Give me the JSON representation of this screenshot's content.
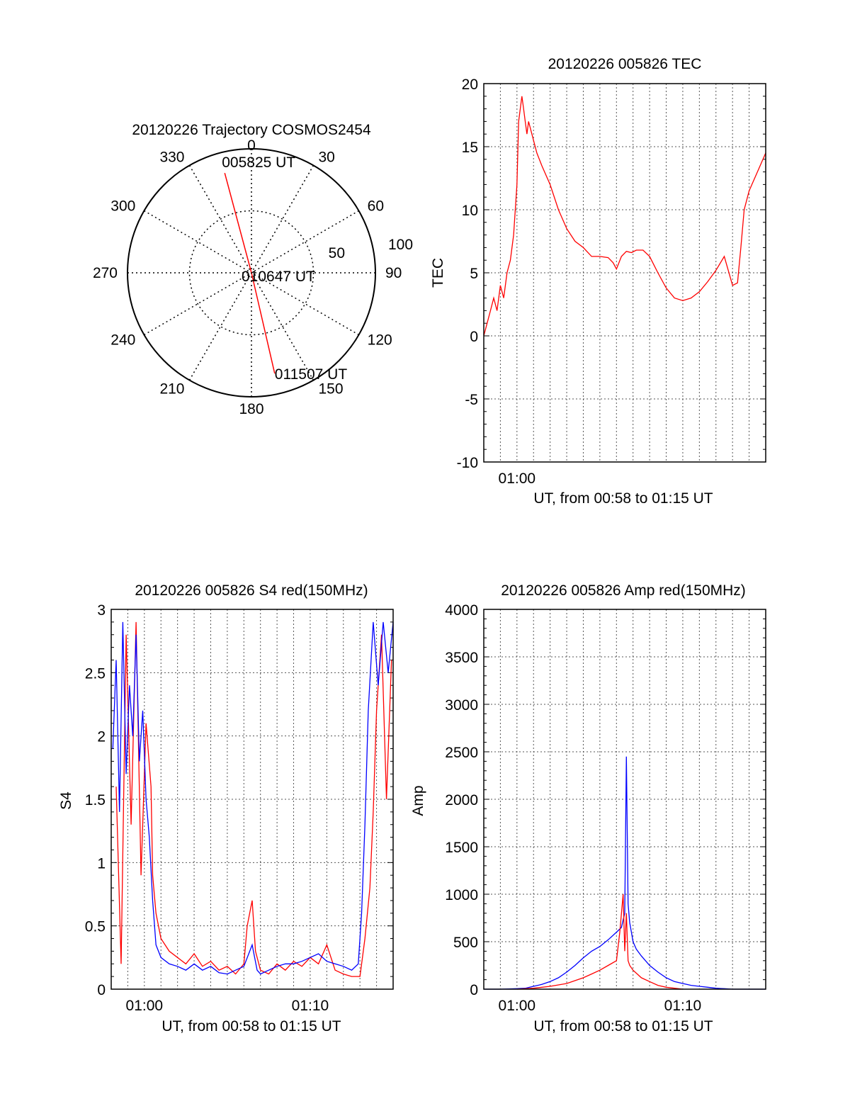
{
  "colors": {
    "red": "#ff0000",
    "blue": "#0000ff",
    "axis": "#000000",
    "grid": "#555555"
  },
  "chart_data": [
    {
      "id": "polar",
      "type": "scatter",
      "subtype": "polar-trajectory",
      "title": "20120226 Trajectory COSMOS2454",
      "angle_labels": [
        "0",
        "30",
        "60",
        "90",
        "120",
        "150",
        "180",
        "210",
        "240",
        "270",
        "300",
        "330"
      ],
      "radius_labels": [
        "50",
        "100"
      ],
      "radius_max": 100,
      "trajectory": [
        {
          "label": "005825 UT",
          "azimuth": 345,
          "elevation": 15
        },
        {
          "label": "010647 UT",
          "azimuth": 0,
          "elevation": 90
        },
        {
          "label": "011507 UT",
          "azimuth": 167,
          "elevation": 15
        }
      ],
      "grid": true
    },
    {
      "id": "tec",
      "type": "line",
      "title": "20120226 005826 TEC",
      "xlabel": "UT, from 00:58 to 01:15 UT",
      "ylabel": "TEC",
      "xlim": [
        58.0,
        75.0
      ],
      "ylim": [
        -10,
        20
      ],
      "x_ticks": [
        {
          "value": 60,
          "label": "01:00"
        }
      ],
      "y_ticks": [
        -10,
        -5,
        0,
        5,
        10,
        15,
        20
      ],
      "grid": true,
      "series": [
        {
          "color": "red",
          "x": [
            58.0,
            58.2,
            58.4,
            58.6,
            58.8,
            59.0,
            59.2,
            59.4,
            59.6,
            59.8,
            60.0,
            60.1,
            60.2,
            60.3,
            60.4,
            60.5,
            60.6,
            60.7,
            60.9,
            61.2,
            61.5,
            62.0,
            62.5,
            63.0,
            63.5,
            64.0,
            64.5,
            65.0,
            65.5,
            65.8,
            66.0,
            66.3,
            66.6,
            66.9,
            67.2,
            67.6,
            68.0,
            68.5,
            69.0,
            69.5,
            70.0,
            70.5,
            71.0,
            71.5,
            72.0,
            72.5,
            73.0,
            73.3,
            73.5,
            73.7,
            74.0,
            74.5,
            75.0
          ],
          "y": [
            0,
            1,
            2,
            3,
            2,
            4,
            3,
            5,
            6,
            8,
            12,
            17,
            18,
            19,
            18,
            17,
            16,
            17,
            16,
            14.5,
            13.5,
            12,
            10,
            8.5,
            7.5,
            7,
            6.3,
            6.3,
            6.2,
            5.8,
            5.3,
            6.3,
            6.7,
            6.6,
            6.8,
            6.8,
            6.3,
            5.0,
            3.8,
            3.0,
            2.8,
            3.0,
            3.5,
            4.3,
            5.2,
            6.3,
            4.0,
            4.2,
            7.0,
            10,
            11.5,
            13,
            14.5
          ]
        }
      ]
    },
    {
      "id": "s4",
      "type": "line",
      "title": "20120226 005826 S4 red(150MHz)",
      "xlabel": "UT, from 00:58 to 01:15 UT",
      "ylabel": "S4",
      "xlim": [
        58.0,
        75.0
      ],
      "ylim": [
        0,
        3
      ],
      "x_ticks": [
        {
          "value": 60,
          "label": "01:00"
        },
        {
          "value": 70,
          "label": "01:10"
        }
      ],
      "y_ticks": [
        {
          "value": 0,
          "label": "0"
        },
        {
          "value": 0.5,
          "label": "0.5"
        },
        {
          "value": 1,
          "label": "1"
        },
        {
          "value": 1.5,
          "label": "1.5"
        },
        {
          "value": 2,
          "label": "2"
        },
        {
          "value": 2.5,
          "label": "2.5"
        },
        {
          "value": 3,
          "label": "3"
        }
      ],
      "grid": true,
      "series": [
        {
          "color": "red",
          "x": [
            58.3,
            58.6,
            58.9,
            59.2,
            59.5,
            59.8,
            60.1,
            60.4,
            60.5,
            60.7,
            61.0,
            61.5,
            62.0,
            62.5,
            63.0,
            63.5,
            64.0,
            64.5,
            65.0,
            65.5,
            66.0,
            66.2,
            66.5,
            66.7,
            67.0,
            67.5,
            68.0,
            68.5,
            69.0,
            69.5,
            70.0,
            70.5,
            71.0,
            71.5,
            72.0,
            72.5,
            73.0,
            73.3,
            73.6,
            73.8,
            74.0,
            74.3,
            74.6,
            74.9
          ],
          "y": [
            1.6,
            0.2,
            2.8,
            1.3,
            2.9,
            0.9,
            2.1,
            1.6,
            0.9,
            0.6,
            0.4,
            0.3,
            0.25,
            0.2,
            0.28,
            0.18,
            0.22,
            0.15,
            0.18,
            0.12,
            0.2,
            0.5,
            0.7,
            0.3,
            0.15,
            0.12,
            0.2,
            0.15,
            0.22,
            0.18,
            0.25,
            0.2,
            0.35,
            0.15,
            0.12,
            0.1,
            0.1,
            0.4,
            0.8,
            1.4,
            2.2,
            2.8,
            1.5,
            2.6
          ]
        },
        {
          "color": "blue",
          "x": [
            58.1,
            58.3,
            58.5,
            58.7,
            58.9,
            59.1,
            59.3,
            59.5,
            59.7,
            59.9,
            60.1,
            60.3,
            60.5,
            60.7,
            61.0,
            61.5,
            62.0,
            62.5,
            63.0,
            63.5,
            64.0,
            64.5,
            65.0,
            65.5,
            66.0,
            66.5,
            66.8,
            67.0,
            67.5,
            68.0,
            68.5,
            69.0,
            69.5,
            70.0,
            70.5,
            71.0,
            71.5,
            72.0,
            72.5,
            72.9,
            73.1,
            73.3,
            73.5,
            73.8,
            74.1,
            74.4,
            74.7,
            75.0
          ],
          "y": [
            1.9,
            2.6,
            1.4,
            2.9,
            1.7,
            2.4,
            2.0,
            2.8,
            1.8,
            2.2,
            1.5,
            1.2,
            0.7,
            0.35,
            0.25,
            0.2,
            0.18,
            0.15,
            0.2,
            0.15,
            0.18,
            0.13,
            0.12,
            0.15,
            0.18,
            0.35,
            0.15,
            0.12,
            0.15,
            0.18,
            0.2,
            0.2,
            0.22,
            0.25,
            0.28,
            0.22,
            0.2,
            0.18,
            0.15,
            0.2,
            0.6,
            1.3,
            2.2,
            2.9,
            2.4,
            2.9,
            2.5,
            2.9
          ]
        }
      ]
    },
    {
      "id": "amp",
      "type": "line",
      "title": "20120226 005826 Amp red(150MHz)",
      "xlabel": "UT, from 00:58 to 01:15 UT",
      "ylabel": "Amp",
      "xlim": [
        58.0,
        75.0
      ],
      "ylim": [
        0,
        4000
      ],
      "x_ticks": [
        {
          "value": 60,
          "label": "01:00"
        },
        {
          "value": 70,
          "label": "01:10"
        }
      ],
      "y_ticks": [
        0,
        500,
        1000,
        1500,
        2000,
        2500,
        3000,
        3500,
        4000
      ],
      "grid": true,
      "series": [
        {
          "color": "blue",
          "x": [
            58.0,
            59.0,
            60.0,
            60.5,
            61.0,
            61.5,
            62.0,
            62.5,
            63.0,
            63.5,
            64.0,
            64.5,
            65.0,
            65.5,
            66.0,
            66.3,
            66.5,
            66.6,
            66.7,
            66.8,
            66.9,
            67.0,
            67.2,
            67.5,
            68.0,
            68.5,
            69.0,
            69.5,
            70.0,
            70.5,
            71.0,
            71.5,
            72.0,
            72.5,
            73.0,
            74.0,
            75.0
          ],
          "y": [
            0,
            0,
            5,
            10,
            30,
            50,
            80,
            120,
            180,
            250,
            330,
            400,
            450,
            520,
            600,
            650,
            800,
            2450,
            900,
            700,
            600,
            500,
            420,
            350,
            250,
            180,
            120,
            80,
            60,
            40,
            30,
            20,
            10,
            5,
            0,
            0,
            0
          ]
        },
        {
          "color": "red",
          "x": [
            60.0,
            61.0,
            62.0,
            63.0,
            64.0,
            64.5,
            65.0,
            65.5,
            66.0,
            66.2,
            66.4,
            66.5,
            66.6,
            66.7,
            66.8,
            67.0,
            67.5,
            68.0,
            68.5,
            69.0,
            70.0
          ],
          "y": [
            0,
            10,
            30,
            60,
            120,
            160,
            200,
            250,
            300,
            600,
            1000,
            400,
            800,
            300,
            250,
            200,
            120,
            80,
            40,
            20,
            0
          ]
        }
      ]
    }
  ]
}
